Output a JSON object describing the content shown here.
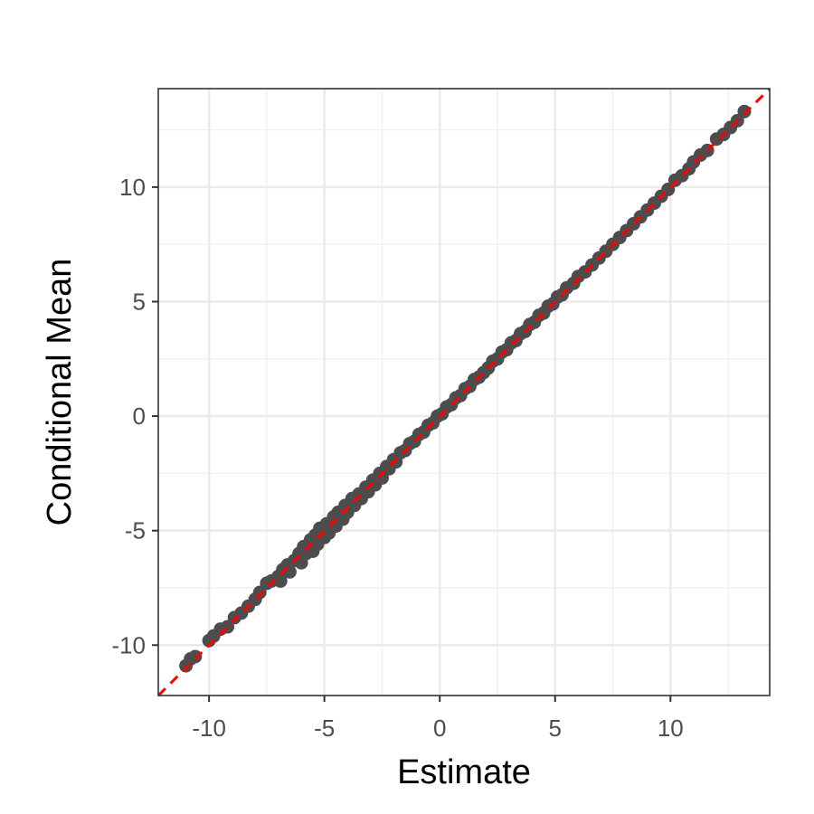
{
  "chart_data": {
    "type": "scatter",
    "title": "",
    "xlabel": "Estimate",
    "ylabel": "Conditional Mean",
    "xlim": [
      -12.2,
      14.3
    ],
    "ylim": [
      -12.2,
      14.3
    ],
    "x_ticks": [
      -10,
      -5,
      0,
      5,
      10
    ],
    "y_ticks": [
      -10,
      -5,
      0,
      5,
      10
    ],
    "x_tick_labels": [
      "-10",
      "-5",
      "0",
      "5",
      "10"
    ],
    "y_tick_labels": [
      "-10",
      "-5",
      "0",
      "5",
      "10"
    ],
    "grid": true,
    "legend": "none",
    "reference_line": {
      "type": "identity",
      "slope": 1,
      "intercept": 0,
      "style": "dashed",
      "color": "#ff0000"
    },
    "point_color": "#4d4d4d",
    "points": [
      [
        -11.0,
        -10.9
      ],
      [
        -10.8,
        -10.6
      ],
      [
        -10.6,
        -10.5
      ],
      [
        -10.0,
        -9.8
      ],
      [
        -9.8,
        -9.6
      ],
      [
        -9.5,
        -9.3
      ],
      [
        -9.2,
        -9.2
      ],
      [
        -8.9,
        -8.8
      ],
      [
        -8.6,
        -8.6
      ],
      [
        -8.3,
        -8.3
      ],
      [
        -8.0,
        -8.0
      ],
      [
        -7.8,
        -7.7
      ],
      [
        -7.5,
        -7.3
      ],
      [
        -7.3,
        -7.2
      ],
      [
        -7.0,
        -7.0
      ],
      [
        -6.9,
        -7.2
      ],
      [
        -6.8,
        -6.7
      ],
      [
        -6.6,
        -6.5
      ],
      [
        -6.5,
        -6.8
      ],
      [
        -6.3,
        -6.3
      ],
      [
        -6.1,
        -6.0
      ],
      [
        -6.0,
        -6.4
      ],
      [
        -5.9,
        -5.7
      ],
      [
        -5.8,
        -6.0
      ],
      [
        -5.6,
        -5.4
      ],
      [
        -5.5,
        -5.9
      ],
      [
        -5.4,
        -5.2
      ],
      [
        -5.3,
        -5.6
      ],
      [
        -5.2,
        -4.9
      ],
      [
        -5.0,
        -5.3
      ],
      [
        -4.9,
        -4.7
      ],
      [
        -4.8,
        -5.1
      ],
      [
        -4.6,
        -4.4
      ],
      [
        -4.5,
        -4.8
      ],
      [
        -4.4,
        -4.2
      ],
      [
        -4.2,
        -4.5
      ],
      [
        -4.1,
        -3.9
      ],
      [
        -4.0,
        -4.2
      ],
      [
        -3.8,
        -3.6
      ],
      [
        -3.7,
        -3.9
      ],
      [
        -3.5,
        -3.4
      ],
      [
        -3.4,
        -3.6
      ],
      [
        -3.2,
        -3.1
      ],
      [
        -3.1,
        -3.3
      ],
      [
        -2.9,
        -2.8
      ],
      [
        -2.8,
        -3.0
      ],
      [
        -2.6,
        -2.5
      ],
      [
        -2.5,
        -2.7
      ],
      [
        -2.3,
        -2.2
      ],
      [
        -2.2,
        -2.3
      ],
      [
        -2.0,
        -1.9
      ],
      [
        -1.9,
        -2.0
      ],
      [
        -1.7,
        -1.6
      ],
      [
        -1.5,
        -1.5
      ],
      [
        -1.3,
        -1.2
      ],
      [
        -1.1,
        -1.1
      ],
      [
        -0.9,
        -0.8
      ],
      [
        -0.7,
        -0.7
      ],
      [
        -0.5,
        -0.4
      ],
      [
        -0.3,
        -0.3
      ],
      [
        -0.1,
        0.0
      ],
      [
        0.1,
        0.1
      ],
      [
        0.3,
        0.4
      ],
      [
        0.5,
        0.5
      ],
      [
        0.7,
        0.8
      ],
      [
        0.9,
        0.9
      ],
      [
        1.1,
        1.2
      ],
      [
        1.3,
        1.3
      ],
      [
        1.5,
        1.6
      ],
      [
        1.7,
        1.7
      ],
      [
        1.9,
        1.9
      ],
      [
        2.1,
        2.1
      ],
      [
        2.3,
        2.4
      ],
      [
        2.5,
        2.5
      ],
      [
        2.7,
        2.8
      ],
      [
        2.9,
        2.9
      ],
      [
        3.1,
        3.2
      ],
      [
        3.3,
        3.3
      ],
      [
        3.5,
        3.6
      ],
      [
        3.7,
        3.7
      ],
      [
        3.9,
        4.0
      ],
      [
        4.1,
        4.1
      ],
      [
        4.3,
        4.4
      ],
      [
        4.5,
        4.5
      ],
      [
        4.7,
        4.8
      ],
      [
        4.9,
        4.9
      ],
      [
        5.1,
        5.2
      ],
      [
        5.3,
        5.3
      ],
      [
        5.5,
        5.6
      ],
      [
        5.8,
        5.8
      ],
      [
        6.0,
        6.1
      ],
      [
        6.3,
        6.3
      ],
      [
        6.6,
        6.6
      ],
      [
        6.9,
        6.9
      ],
      [
        7.2,
        7.2
      ],
      [
        7.5,
        7.5
      ],
      [
        7.8,
        7.8
      ],
      [
        8.1,
        8.1
      ],
      [
        8.4,
        8.4
      ],
      [
        8.7,
        8.7
      ],
      [
        9.0,
        9.0
      ],
      [
        9.3,
        9.3
      ],
      [
        9.6,
        9.6
      ],
      [
        9.9,
        9.9
      ],
      [
        10.2,
        10.3
      ],
      [
        10.5,
        10.5
      ],
      [
        10.8,
        10.8
      ],
      [
        11.0,
        11.1
      ],
      [
        11.3,
        11.4
      ],
      [
        11.6,
        11.6
      ],
      [
        12.0,
        12.1
      ],
      [
        12.3,
        12.3
      ],
      [
        12.6,
        12.6
      ],
      [
        12.9,
        12.9
      ],
      [
        13.2,
        13.3
      ]
    ]
  }
}
